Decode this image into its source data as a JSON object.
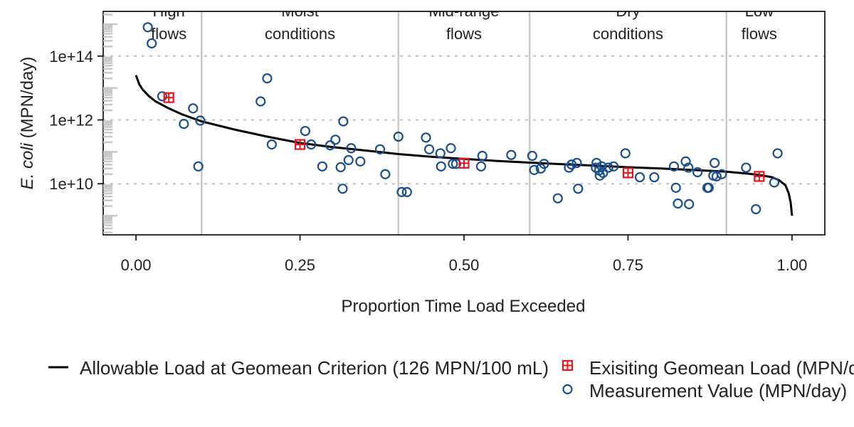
{
  "chart_data": {
    "type": "scatter",
    "title": "",
    "xlabel": "Proportion Time Load Exceeded",
    "ylabel_italic": "E. coli",
    "ylabel_rest": " (MPN/day)",
    "xlim": [
      -0.05,
      1.05
    ],
    "ylim_log10": [
      8.4,
      15.4
    ],
    "y_scale": "log",
    "x_ticks": [
      {
        "value": 0,
        "label": "0.00"
      },
      {
        "value": 0.25,
        "label": "0.25"
      },
      {
        "value": 0.5,
        "label": "0.50"
      },
      {
        "value": 0.75,
        "label": "0.75"
      },
      {
        "value": 1,
        "label": "1.00"
      }
    ],
    "y_ticks": [
      {
        "value": 10000000000.0,
        "label": "1e+10"
      },
      {
        "value": 1000000000000.0,
        "label": "1e+12"
      },
      {
        "value": 100000000000000.0,
        "label": "1e+14"
      }
    ],
    "flow_zone_boundaries": [
      0.1,
      0.4,
      0.6,
      0.9
    ],
    "flow_zones": [
      {
        "line1": "High",
        "line2": "flows",
        "center": 0.05
      },
      {
        "line1": "Moist",
        "line2": "conditions",
        "center": 0.25
      },
      {
        "line1": "Mid-range",
        "line2": "flows",
        "center": 0.5
      },
      {
        "line1": "Dry",
        "line2": "conditions",
        "center": 0.75
      },
      {
        "line1": "Low",
        "line2": "flows",
        "center": 0.95
      }
    ],
    "series": [
      {
        "name": "Allowable Load at Geomean Criterion (126 MPN/100 mL)",
        "kind": "line",
        "color": "#000000",
        "points": [
          [
            0.0,
            25000000000000.0
          ],
          [
            0.005,
            13000000000000.0
          ],
          [
            0.01,
            9000000000000.0
          ],
          [
            0.02,
            5500000000000.0
          ],
          [
            0.03,
            3800000000000.0
          ],
          [
            0.05,
            2300000000000.0
          ],
          [
            0.07,
            1500000000000.0
          ],
          [
            0.1,
            900000000000.0
          ],
          [
            0.15,
            500000000000.0
          ],
          [
            0.2,
            300000000000.0
          ],
          [
            0.25,
            190000000000.0
          ],
          [
            0.3,
            140000000000.0
          ],
          [
            0.35,
            110000000000.0
          ],
          [
            0.4,
            85000000000.0
          ],
          [
            0.45,
            70000000000.0
          ],
          [
            0.5,
            60000000000.0
          ],
          [
            0.55,
            52000000000.0
          ],
          [
            0.6,
            46000000000.0
          ],
          [
            0.65,
            41000000000.0
          ],
          [
            0.7,
            37000000000.0
          ],
          [
            0.75,
            33000000000.0
          ],
          [
            0.8,
            30000000000.0
          ],
          [
            0.85,
            27000000000.0
          ],
          [
            0.9,
            24000000000.0
          ],
          [
            0.93,
            21000000000.0
          ],
          [
            0.95,
            19000000000.0
          ],
          [
            0.97,
            16000000000.0
          ],
          [
            0.98,
            13000000000.0
          ],
          [
            0.99,
            9000000000.0
          ],
          [
            0.995,
            5000000000.0
          ],
          [
            0.998,
            2500000000.0
          ],
          [
            1.0,
            1000000000.0
          ]
        ]
      },
      {
        "name": "Exisiting Geomean Load (MPN/day)",
        "kind": "square-plus",
        "color": "#e8141c",
        "points": [
          [
            0.05,
            5000000000000.0
          ],
          [
            0.25,
            170000000000.0
          ],
          [
            0.5,
            44000000000.0
          ],
          [
            0.75,
            22000000000.0
          ],
          [
            0.95,
            17000000000.0
          ]
        ]
      },
      {
        "name": "Measurement Value (MPN/day)",
        "kind": "circle",
        "color": "#1b4f8c",
        "points": [
          [
            0.018,
            800000000000000.0
          ],
          [
            0.024,
            250000000000000.0
          ],
          [
            0.04,
            5500000000000.0
          ],
          [
            0.073,
            750000000000.0
          ],
          [
            0.087,
            2300000000000.0
          ],
          [
            0.095,
            35000000000.0
          ],
          [
            0.098,
            950000000000.0
          ],
          [
            0.19,
            3800000000000.0
          ],
          [
            0.2,
            20000000000000.0
          ],
          [
            0.207,
            170000000000.0
          ],
          [
            0.258,
            450000000000.0
          ],
          [
            0.267,
            170000000000.0
          ],
          [
            0.284,
            35000000000.0
          ],
          [
            0.296,
            160000000000.0
          ],
          [
            0.304,
            240000000000.0
          ],
          [
            0.312,
            33000000000.0
          ],
          [
            0.315,
            7000000000.0
          ],
          [
            0.316,
            900000000000.0
          ],
          [
            0.324,
            55000000000.0
          ],
          [
            0.328,
            130000000000.0
          ],
          [
            0.342,
            50000000000.0
          ],
          [
            0.372,
            120000000000.0
          ],
          [
            0.38,
            20000000000.0
          ],
          [
            0.4,
            300000000000.0
          ],
          [
            0.405,
            5500000000.0
          ],
          [
            0.413,
            5500000000.0
          ],
          [
            0.442,
            280000000000.0
          ],
          [
            0.447,
            120000000000.0
          ],
          [
            0.464,
            90000000000.0
          ],
          [
            0.465,
            35000000000.0
          ],
          [
            0.48,
            130000000000.0
          ],
          [
            0.483,
            42000000000.0
          ],
          [
            0.488,
            42000000000.0
          ],
          [
            0.526,
            35000000000.0
          ],
          [
            0.528,
            75000000000.0
          ],
          [
            0.572,
            80000000000.0
          ],
          [
            0.604,
            75000000000.0
          ],
          [
            0.607,
            27000000000.0
          ],
          [
            0.617,
            30000000000.0
          ],
          [
            0.622,
            42000000000.0
          ],
          [
            0.643,
            3500000000.0
          ],
          [
            0.66,
            32000000000.0
          ],
          [
            0.664,
            40000000000.0
          ],
          [
            0.672,
            45000000000.0
          ],
          [
            0.674,
            7000000000.0
          ],
          [
            0.701,
            32000000000.0
          ],
          [
            0.702,
            45000000000.0
          ],
          [
            0.706,
            26000000000.0
          ],
          [
            0.707,
            18000000000.0
          ],
          [
            0.71,
            35000000000.0
          ],
          [
            0.712,
            22000000000.0
          ],
          [
            0.72,
            32000000000.0
          ],
          [
            0.728,
            35000000000.0
          ],
          [
            0.746,
            90000000000.0
          ],
          [
            0.768,
            16000000000.0
          ],
          [
            0.79,
            16000000000.0
          ],
          [
            0.82,
            35000000000.0
          ],
          [
            0.823,
            7500000000.0
          ],
          [
            0.826,
            2400000000.0
          ],
          [
            0.838,
            50000000000.0
          ],
          [
            0.842,
            32000000000.0
          ],
          [
            0.843,
            2300000000.0
          ],
          [
            0.856,
            23000000000.0
          ],
          [
            0.871,
            7500000000.0
          ],
          [
            0.873,
            7500000000.0
          ],
          [
            0.88,
            18000000000.0
          ],
          [
            0.882,
            45000000000.0
          ],
          [
            0.885,
            17000000000.0
          ],
          [
            0.893,
            20000000000.0
          ],
          [
            0.93,
            32000000000.0
          ],
          [
            0.945,
            1600000000.0
          ],
          [
            0.973,
            11000000000.0
          ],
          [
            0.978,
            90000000000.0
          ]
        ]
      }
    ],
    "legend_placement": "bottom",
    "grid": "horizontal dotted at major y ticks",
    "colors": {
      "zone_line": "#c8c8c8",
      "grid": "#c8c8c8",
      "axis": "#000000"
    }
  }
}
